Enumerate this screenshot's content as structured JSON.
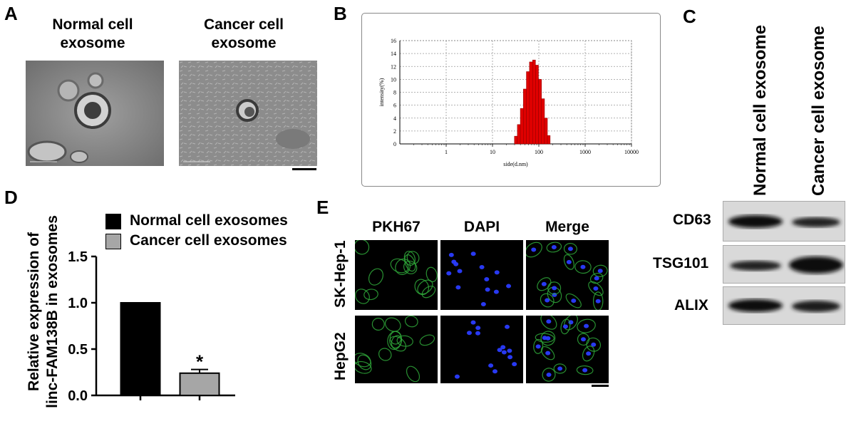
{
  "panels": {
    "A": "A",
    "B": "B",
    "C": "C",
    "D": "D",
    "E": "E"
  },
  "panelA": {
    "normal_title_1": "Normal cell",
    "normal_title_2": "exosome",
    "cancer_title_1": "Cancer cell",
    "cancer_title_2": "exosome"
  },
  "panelB": {
    "chart_data": {
      "type": "bar",
      "xlabel": "side(d.nm)",
      "ylabel": "intensity(%)",
      "x_scale": "log",
      "xlim": [
        0.1,
        10000
      ],
      "ylim": [
        0,
        16
      ],
      "x_ticks": [
        "1",
        "10",
        "100",
        "1000",
        "10000"
      ],
      "y_ticks": [
        "0",
        "2",
        "4",
        "6",
        "8",
        "10",
        "12",
        "14",
        "16"
      ],
      "bins_nm": [
        32,
        37,
        43,
        50,
        58,
        68,
        79,
        91,
        106,
        123,
        143,
        164
      ],
      "values": [
        1.2,
        3.0,
        5.5,
        8.5,
        11.2,
        12.7,
        13.0,
        12.2,
        10.0,
        7.0,
        4.0,
        1.3
      ]
    }
  },
  "panelC": {
    "col_labels": [
      "Normal cell exosome",
      "Cancer cell exosome"
    ],
    "proteins": [
      "CD63",
      "TSG101",
      "ALIX"
    ]
  },
  "panelD": {
    "chart_data": {
      "type": "bar",
      "ylabel_line1": "Relative expression of",
      "ylabel_line2": "linc-FAM138B in exosomes",
      "ylim": [
        0,
        1.5
      ],
      "y_ticks": [
        "0.0",
        "0.5",
        "1.0",
        "1.5"
      ],
      "series": [
        {
          "name": "Normal cell exosomes",
          "value": 1.0,
          "error": 0,
          "color": "#000000"
        },
        {
          "name": "Cancer cell exosomes",
          "value": 0.24,
          "error": 0.04,
          "color": "#a6a6a6"
        }
      ],
      "annotation": "*"
    }
  },
  "panelE": {
    "col_labels": [
      "PKH67",
      "DAPI",
      "Merge"
    ],
    "row_labels": [
      "SK-Hep-1",
      "HepG2"
    ]
  }
}
